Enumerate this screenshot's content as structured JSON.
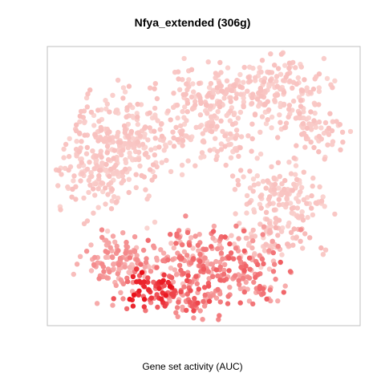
{
  "chart_data": {
    "type": "scatter",
    "title": "Nfya_extended (306g)",
    "xlabel": "Gene set activity (AUC)",
    "ylabel": "",
    "grid": false,
    "legend": "none",
    "colors": {
      "low": "#fbe0dc",
      "high": "#e8000b",
      "frame": "#bfbfbf"
    },
    "color_scale": "white-to-red by AUC",
    "clusters": [
      {
        "cx": 0.18,
        "cy": 0.58,
        "sx": 0.08,
        "sy": 0.1,
        "n": 220,
        "auc": [
          0.05,
          0.15
        ]
      },
      {
        "cx": 0.3,
        "cy": 0.68,
        "sx": 0.09,
        "sy": 0.07,
        "n": 170,
        "auc": [
          0.05,
          0.15
        ]
      },
      {
        "cx": 0.55,
        "cy": 0.67,
        "sx": 0.07,
        "sy": 0.06,
        "n": 90,
        "auc": [
          0.05,
          0.15
        ]
      },
      {
        "cx": 0.53,
        "cy": 0.83,
        "sx": 0.07,
        "sy": 0.05,
        "n": 110,
        "auc": [
          0.05,
          0.15
        ]
      },
      {
        "cx": 0.73,
        "cy": 0.85,
        "sx": 0.08,
        "sy": 0.07,
        "n": 160,
        "auc": [
          0.05,
          0.15
        ]
      },
      {
        "cx": 0.85,
        "cy": 0.7,
        "sx": 0.05,
        "sy": 0.06,
        "n": 70,
        "auc": [
          0.05,
          0.15
        ]
      },
      {
        "cx": 0.73,
        "cy": 0.47,
        "sx": 0.06,
        "sy": 0.04,
        "n": 60,
        "auc": [
          0.05,
          0.15
        ]
      },
      {
        "cx": 0.78,
        "cy": 0.45,
        "sx": 0.06,
        "sy": 0.05,
        "n": 70,
        "auc": [
          0.05,
          0.15
        ]
      },
      {
        "cx": 0.7,
        "cy": 0.3,
        "sx": 0.07,
        "sy": 0.04,
        "n": 80,
        "auc": [
          0.05,
          0.2
        ]
      },
      {
        "cx": 0.23,
        "cy": 0.23,
        "sx": 0.06,
        "sy": 0.05,
        "n": 120,
        "auc": [
          0.15,
          0.4
        ]
      },
      {
        "cx": 0.44,
        "cy": 0.23,
        "sx": 0.07,
        "sy": 0.06,
        "n": 110,
        "auc": [
          0.1,
          0.55
        ]
      },
      {
        "cx": 0.61,
        "cy": 0.2,
        "sx": 0.08,
        "sy": 0.07,
        "n": 150,
        "auc": [
          0.2,
          0.6
        ]
      },
      {
        "cx": 0.32,
        "cy": 0.13,
        "sx": 0.05,
        "sy": 0.04,
        "n": 70,
        "auc": [
          0.4,
          0.95
        ]
      },
      {
        "cx": 0.46,
        "cy": 0.09,
        "sx": 0.05,
        "sy": 0.04,
        "n": 60,
        "auc": [
          0.15,
          0.7
        ]
      }
    ],
    "xlim": [
      0,
      1
    ],
    "ylim": [
      0,
      1
    ]
  }
}
